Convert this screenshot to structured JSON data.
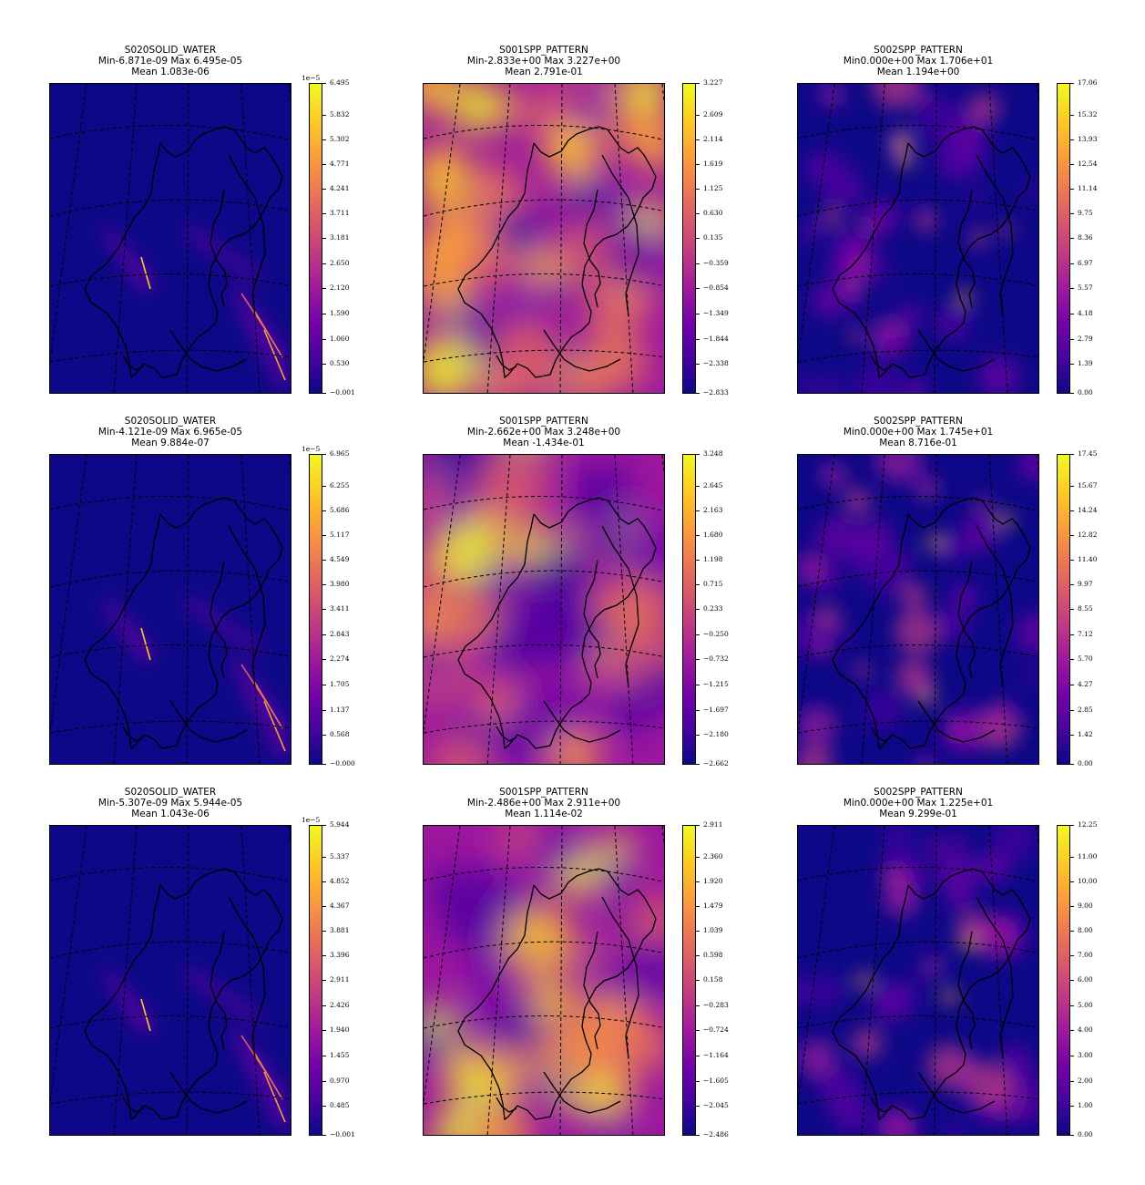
{
  "panels": [
    {
      "id": "r0c0",
      "variable": "S020SOLID_WATER",
      "stats": "Min-6.871e-09 Max 6.495e-05",
      "mean": "Mean 1.083e-06",
      "sci": "1e−5",
      "field": "solid",
      "ticks": [
        "6.495",
        "5.832",
        "5.302",
        "4.771",
        "4.241",
        "3.711",
        "3.181",
        "2.650",
        "2.120",
        "1.590",
        "1.060",
        "0.530",
        "−0.001"
      ]
    },
    {
      "id": "r0c1",
      "variable": "S001SPP_PATTERN",
      "stats": "Min-2.833e+00 Max 3.227e+00",
      "mean": "Mean 2.791e-01",
      "sci": "",
      "field": "spp1a",
      "ticks": [
        "3.227",
        "2.609",
        "2.114",
        "1.619",
        "1.125",
        "0.630",
        "0.135",
        "−0.359",
        "−0.854",
        "−1.349",
        "−1.844",
        "−2.338",
        "−2.833"
      ]
    },
    {
      "id": "r0c2",
      "variable": "S002SPP_PATTERN",
      "stats": "Min0.000e+00 Max 1.706e+01",
      "mean": "Mean 1.194e+00",
      "sci": "",
      "field": "spp2a",
      "ticks": [
        "17.06",
        "15.32",
        "13.93",
        "12.54",
        "11.14",
        "9.75",
        "8.36",
        "6.97",
        "5.57",
        "4.18",
        "2.79",
        "1.39",
        "0.00"
      ]
    },
    {
      "id": "r1c0",
      "variable": "S020SOLID_WATER",
      "stats": "Min-4.121e-09 Max 6.965e-05",
      "mean": "Mean 9.884e-07",
      "sci": "1e−5",
      "field": "solid",
      "ticks": [
        "6.965",
        "6.255",
        "5.686",
        "5.117",
        "4.549",
        "3.980",
        "3.411",
        "2.843",
        "2.274",
        "1.705",
        "1.137",
        "0.568",
        "−0.000"
      ]
    },
    {
      "id": "r1c1",
      "variable": "S001SPP_PATTERN",
      "stats": "Min-2.662e+00 Max 3.248e+00",
      "mean": "Mean -1.434e-01",
      "sci": "",
      "field": "spp1b",
      "ticks": [
        "3.248",
        "2.645",
        "2.163",
        "1.680",
        "1.198",
        "0.715",
        "0.233",
        "−0.250",
        "−0.732",
        "−1.215",
        "−1.697",
        "−2.180",
        "−2.662"
      ]
    },
    {
      "id": "r1c2",
      "variable": "S002SPP_PATTERN",
      "stats": "Min0.000e+00 Max 1.745e+01",
      "mean": "Mean 8.716e-01",
      "sci": "",
      "field": "spp2b",
      "ticks": [
        "17.45",
        "15.67",
        "14.24",
        "12.82",
        "11.40",
        "9.97",
        "8.55",
        "7.12",
        "5.70",
        "4.27",
        "2.85",
        "1.42",
        "0.00"
      ]
    },
    {
      "id": "r2c0",
      "variable": "S020SOLID_WATER",
      "stats": "Min-5.307e-09 Max 5.944e-05",
      "mean": "Mean 1.043e-06",
      "sci": "1e−5",
      "field": "solid",
      "ticks": [
        "5.944",
        "5.337",
        "4.852",
        "4.367",
        "3.881",
        "3.396",
        "2.911",
        "2.426",
        "1.940",
        "1.455",
        "0.970",
        "0.485",
        "−0.001"
      ]
    },
    {
      "id": "r2c1",
      "variable": "S001SPP_PATTERN",
      "stats": "Min-2.486e+00 Max 2.911e+00",
      "mean": "Mean 1.114e-02",
      "sci": "",
      "field": "spp1c",
      "ticks": [
        "2.911",
        "2.360",
        "1.920",
        "1.479",
        "1.039",
        "0.598",
        "0.158",
        "−0.283",
        "−0.724",
        "−1.164",
        "−1.605",
        "−2.045",
        "−2.486"
      ]
    },
    {
      "id": "r2c2",
      "variable": "S002SPP_PATTERN",
      "stats": "Min0.000e+00 Max 1.225e+01",
      "mean": "Mean 9.299e-01",
      "sci": "",
      "field": "spp2c",
      "ticks": [
        "12.25",
        "11.00",
        "10.00",
        "9.00",
        "8.00",
        "7.00",
        "6.00",
        "5.00",
        "4.00",
        "3.00",
        "2.00",
        "1.00",
        "0.00"
      ]
    }
  ],
  "colormap": "plasma",
  "colors": {
    "low": "#0d0887",
    "high": "#f0f921"
  }
}
